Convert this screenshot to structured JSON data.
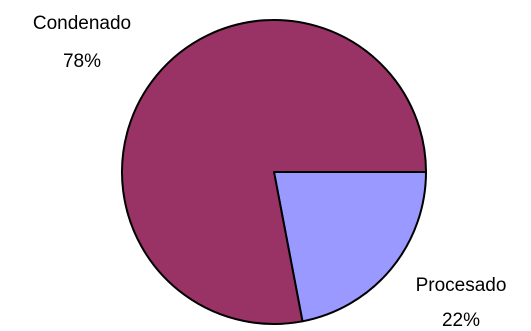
{
  "chart_data": {
    "type": "pie",
    "title": "",
    "slices": [
      {
        "label": "Condenado",
        "value": 78,
        "percent_label": "78%",
        "color": "#993366"
      },
      {
        "label": "Procesado",
        "value": 22,
        "percent_label": "22%",
        "color": "#9999FF"
      }
    ],
    "start_angle_deg": 0,
    "direction": "clockwise",
    "outline_color": "#000000"
  }
}
